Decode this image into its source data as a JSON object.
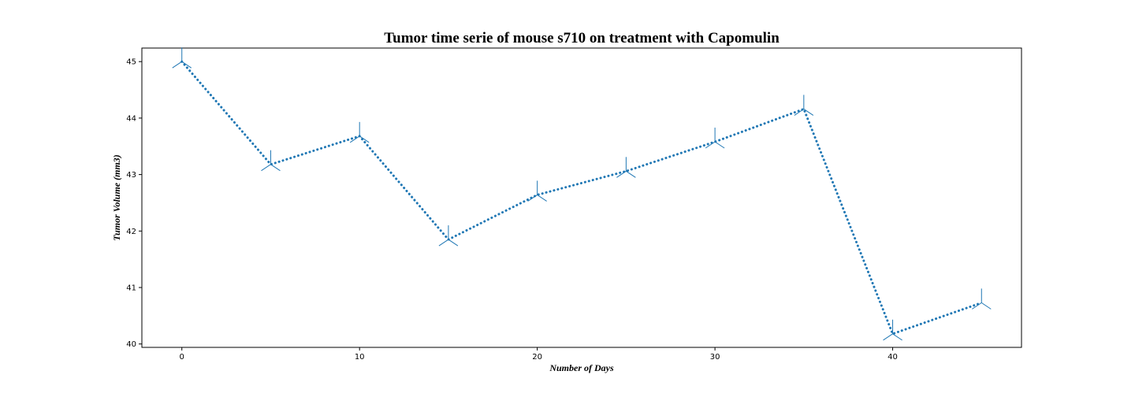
{
  "chart_data": {
    "type": "line",
    "title": "Tumor time serie of mouse s710 on treatment with Capomulin",
    "xlabel": "Number of Days",
    "ylabel": "Tumor Volume (mm3)",
    "xlim": [
      -2.25,
      47.25
    ],
    "ylim": [
      39.94,
      45.24
    ],
    "xticks": [
      0,
      10,
      20,
      30,
      40
    ],
    "yticks": [
      40,
      41,
      42,
      43,
      44,
      45
    ],
    "grid": false,
    "series": [
      {
        "color": "#1f77b4",
        "linestyle": "dotted",
        "marker": "tri-star",
        "x": [
          0,
          5,
          10,
          15,
          20,
          25,
          30,
          35,
          40,
          45
        ],
        "y": [
          45.0,
          43.18,
          43.68,
          41.85,
          42.64,
          43.06,
          43.58,
          44.16,
          40.18,
          40.73
        ]
      }
    ]
  }
}
